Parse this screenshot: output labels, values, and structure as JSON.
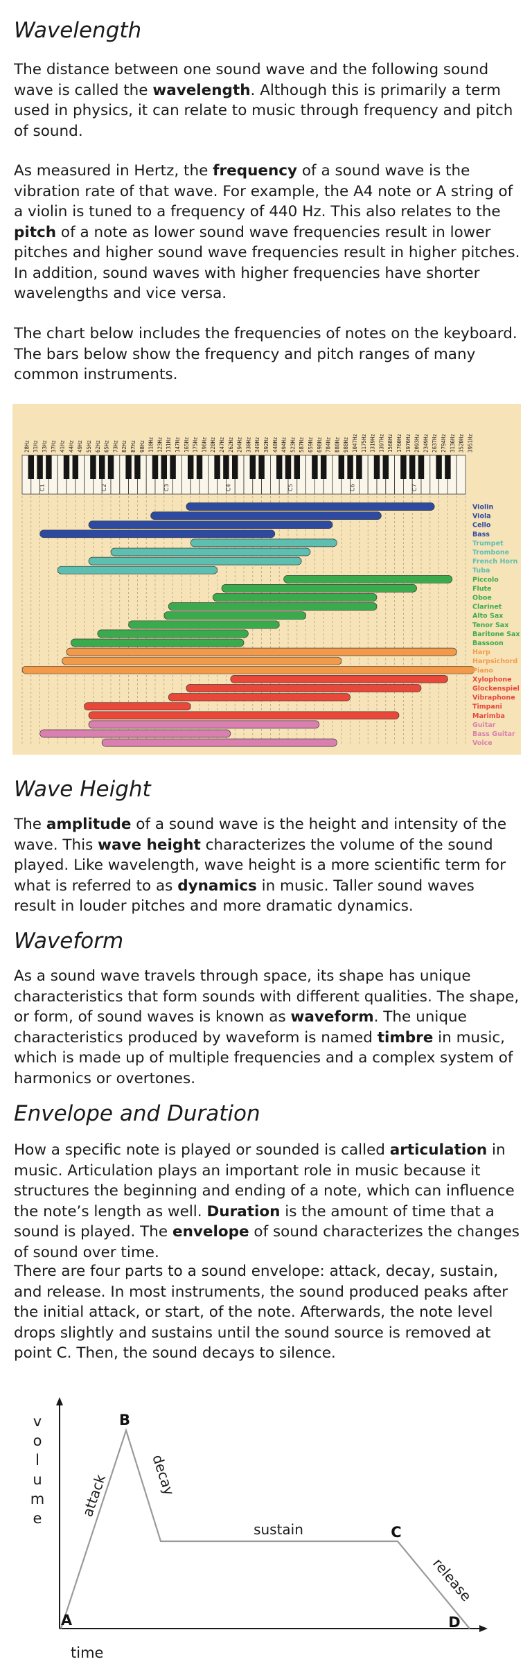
{
  "wavelength": {
    "heading": "Wavelength",
    "p1": [
      "The distance between one sound wave and the following sound wave is called the ",
      "wavelength",
      ". Although this is primarily a term used in physics, it can relate to music through frequency and pitch of sound."
    ],
    "p2": [
      "As measured in Hertz, the ",
      "frequency",
      " of a sound wave is the vibration rate of that wave. For example, the A4 note or A string of a violin is tuned to a frequency of 440 Hz. This also relates to the ",
      "pitch",
      " of a note as lower sound wave frequencies result in lower pitches and higher sound wave frequencies result in higher pitches. In addition, sound waves with higher frequencies have shorter wavelengths and vice versa."
    ],
    "p3": "The chart below includes the frequencies of notes on the keyboard. The bars below show the frequency and pitch ranges of many common instruments."
  },
  "chart_data": {
    "type": "bar",
    "octave_labels": [
      "C1",
      "C2",
      "C3",
      "C4",
      "C5",
      "C6",
      "C7"
    ],
    "freq_labels": [
      "28Hz",
      "31Hz",
      "33Hz",
      "37Hz",
      "41Hz",
      "44Hz",
      "49Hz",
      "55Hz",
      "62Hz",
      "65Hz",
      "73Hz",
      "82Hz",
      "87Hz",
      "98Hz",
      "110Hz",
      "123Hz",
      "131Hz",
      "147Hz",
      "165Hz",
      "175Hz",
      "196Hz",
      "220Hz",
      "247Hz",
      "262Hz",
      "294Hz",
      "330Hz",
      "349Hz",
      "392Hz",
      "440Hz",
      "494Hz",
      "523Hz",
      "587Hz",
      "659Hz",
      "698Hz",
      "784Hz",
      "880Hz",
      "988Hz",
      "1047Hz",
      "1175Hz",
      "1319Hz",
      "1397Hz",
      "1568Hz",
      "1760Hz",
      "1976Hz",
      "2093Hz",
      "2349Hz",
      "2637Hz",
      "2794Hz",
      "3136Hz",
      "3520Hz",
      "3951Hz"
    ],
    "unit": "white-key index (0 = A0, 51 = C8)",
    "instruments": [
      {
        "name": "Violin",
        "low": 18.5,
        "high": 46.5,
        "color": "#2e4aa0"
      },
      {
        "name": "Viola",
        "low": 14.5,
        "high": 40.5,
        "color": "#2e4aa0"
      },
      {
        "name": "Cello",
        "low": 7.5,
        "high": 35,
        "color": "#2e4aa0"
      },
      {
        "name": "Bass",
        "low": 2,
        "high": 28.5,
        "color": "#2e4aa0"
      },
      {
        "name": "Trumpet",
        "low": 19,
        "high": 35.5,
        "color": "#5cbfb0"
      },
      {
        "name": "Trombone",
        "low": 10,
        "high": 32.5,
        "color": "#5cbfb0"
      },
      {
        "name": "French Horn",
        "low": 7.5,
        "high": 31.5,
        "color": "#5cbfb0"
      },
      {
        "name": "Tuba",
        "low": 4,
        "high": 22,
        "color": "#5cbfb0"
      },
      {
        "name": "Piccolo",
        "low": 29.5,
        "high": 48.5,
        "color": "#3aab4c"
      },
      {
        "name": "Flute",
        "low": 22.5,
        "high": 44.5,
        "color": "#3aab4c"
      },
      {
        "name": "Oboe",
        "low": 21.5,
        "high": 40,
        "color": "#3aab4c"
      },
      {
        "name": "Clarinet",
        "low": 16.5,
        "high": 40,
        "color": "#3aab4c"
      },
      {
        "name": "Alto Sax",
        "low": 16,
        "high": 32,
        "color": "#3aab4c"
      },
      {
        "name": "Tenor Sax",
        "low": 12,
        "high": 29,
        "color": "#3aab4c"
      },
      {
        "name": "Baritone Sax",
        "low": 8.5,
        "high": 25.5,
        "color": "#3aab4c"
      },
      {
        "name": "Bassoon",
        "low": 5.5,
        "high": 25,
        "color": "#3aab4c"
      },
      {
        "name": "Harp",
        "low": 5,
        "high": 49,
        "color": "#f39a4a"
      },
      {
        "name": "Harpsichord",
        "low": 4.5,
        "high": 36,
        "color": "#f39a4a"
      },
      {
        "name": "Piano",
        "low": 0,
        "high": 51,
        "color": "#f39a4a"
      },
      {
        "name": "Xylophone",
        "low": 23.5,
        "high": 48,
        "color": "#e8473a"
      },
      {
        "name": "Glockenspiel",
        "low": 18.5,
        "high": 45,
        "color": "#e8473a"
      },
      {
        "name": "Vibraphone",
        "low": 16.5,
        "high": 37,
        "color": "#e8473a"
      },
      {
        "name": "Timpani",
        "low": 7,
        "high": 19,
        "color": "#e8473a"
      },
      {
        "name": "Marimba",
        "low": 7.5,
        "high": 42.5,
        "color": "#e8473a"
      },
      {
        "name": "Guitar",
        "low": 7.5,
        "high": 33.5,
        "color": "#d980b0"
      },
      {
        "name": "Bass Guitar",
        "low": 2,
        "high": 23.5,
        "color": "#d980b0"
      },
      {
        "name": "Voice",
        "low": 9,
        "high": 35.5,
        "color": "#d980b0"
      }
    ]
  },
  "wave_height": {
    "heading": "Wave Height",
    "p1": [
      "The ",
      "amplitude",
      " of a sound wave is the height and intensity of the wave. This ",
      "wave height",
      " characterizes the volume of the sound played. Like wavelength, wave height is a more scientific term for what is referred to as ",
      "dynamics",
      " in music. Taller sound waves result in louder pitches and more dramatic dynamics."
    ]
  },
  "waveform": {
    "heading": "Waveform",
    "p1": [
      "As a sound wave travels through space, its shape has unique characteristics that form sounds with different qualities. The shape, or form, of sound waves is known as ",
      "waveform",
      ". The unique characteristics produced by waveform is named ",
      "timbre",
      " in music, which is made up of multiple frequencies and a complex system of harmonics or overtones."
    ]
  },
  "envelope": {
    "heading": "Envelope and Duration",
    "p1": [
      "How a specific note is played or sounded is called ",
      "articulation",
      " in music. Articulation plays an important role in music because it structures the beginning and ending of a note, which can influence the note’s length as well. ",
      "Duration",
      " is the amount of time that a sound is played. The ",
      "envelope",
      " of sound characterizes the changes of sound over time."
    ],
    "p2": "There are four parts to a sound envelope: attack, decay, sustain, and release. In most instruments, the sound produced peaks after the initial attack, or start, of the note. Afterwards, the note level drops slightly and sustains until the sound source is removed at point C. Then, the sound decays to silence.",
    "diagram": {
      "y_label_letters": [
        "v",
        "o",
        "l",
        "u",
        "m",
        "e"
      ],
      "x_label": "time",
      "points": [
        "A",
        "B",
        "C",
        "D"
      ],
      "phases": [
        "attack",
        "decay",
        "sustain",
        "release"
      ]
    }
  }
}
